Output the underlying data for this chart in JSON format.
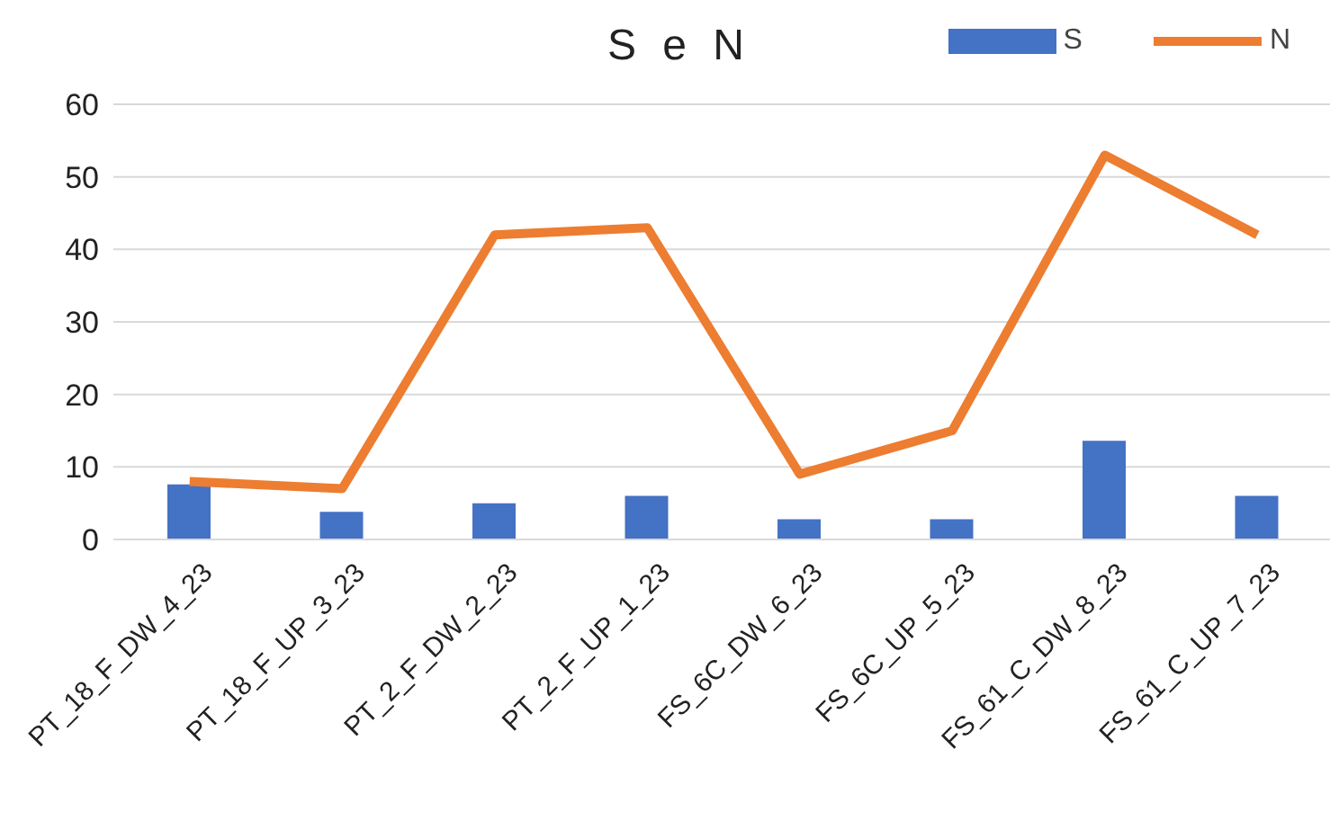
{
  "chart_data": {
    "type": "bar",
    "title": "S e N",
    "categories": [
      "PT_18_F_DW_4_23",
      "PT_18_F_UP_3_23",
      "PT_2_F_DW_2_23",
      "PT_2_F_UP_1_23",
      "FS_6C_DW_6_23",
      "FS_6C_UP_5_23",
      "FS_61_C_DW_8_23",
      "FS_61_C_UP_7_23"
    ],
    "series": [
      {
        "name": "S",
        "color": "#4472c4",
        "values": [
          7.6,
          3.8,
          5,
          6,
          2.8,
          2.8,
          13.6,
          6
        ]
      },
      {
        "name": "N",
        "type": "line",
        "color": "#ed7d31",
        "values": [
          8,
          7,
          42,
          43,
          9,
          15,
          53,
          42
        ]
      }
    ],
    "ylim": [
      0,
      60
    ],
    "yticks": [
      0,
      10,
      20,
      30,
      40,
      50,
      60
    ],
    "grid": "y",
    "legend": "top right",
    "marker": "none"
  }
}
